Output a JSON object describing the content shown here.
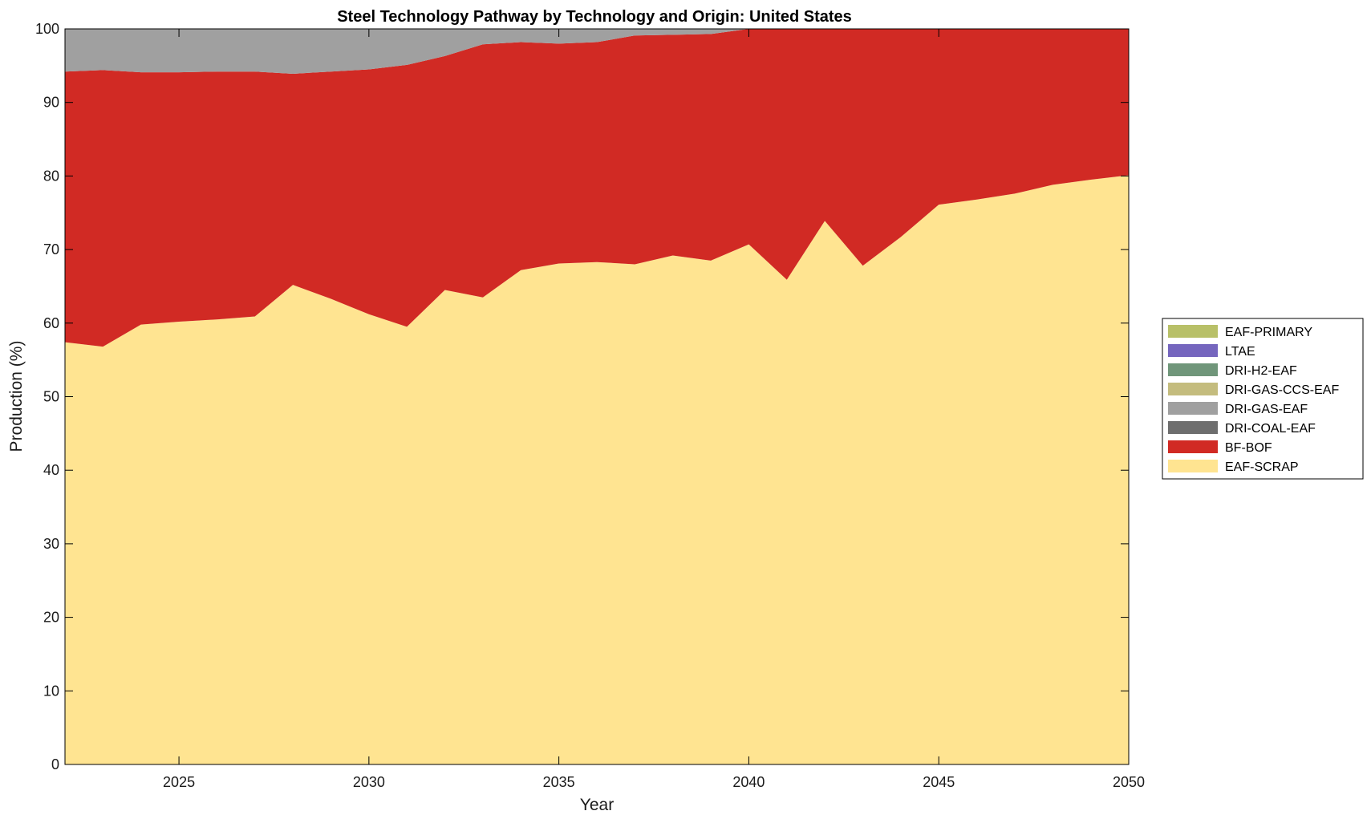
{
  "chart_data": {
    "type": "area",
    "stacked": true,
    "title": "Steel Technology Pathway by Technology and Origin: United States",
    "xlabel": "Year",
    "ylabel": "Production (%)",
    "xlim": [
      2022,
      2050
    ],
    "ylim": [
      0,
      100
    ],
    "xticks": [
      2025,
      2030,
      2035,
      2040,
      2045,
      2050
    ],
    "yticks": [
      0,
      10,
      20,
      30,
      40,
      50,
      60,
      70,
      80,
      90,
      100
    ],
    "grid": false,
    "legend_position": "right",
    "x": [
      2022,
      2023,
      2024,
      2025,
      2026,
      2027,
      2028,
      2029,
      2030,
      2031,
      2032,
      2033,
      2034,
      2035,
      2036,
      2037,
      2038,
      2039,
      2040,
      2041,
      2042,
      2043,
      2044,
      2045,
      2046,
      2047,
      2048,
      2049,
      2050
    ],
    "series": [
      {
        "name": "EAF-SCRAP",
        "color": "#FFE491",
        "values": [
          57.4,
          56.8,
          59.8,
          60.2,
          60.5,
          60.9,
          65.2,
          63.3,
          61.2,
          59.5,
          64.5,
          63.5,
          67.2,
          68.1,
          68.3,
          68.0,
          69.2,
          68.5,
          70.7,
          65.9,
          73.9,
          67.8,
          71.7,
          76.1,
          76.8,
          77.6,
          78.8,
          79.5,
          80.1
        ]
      },
      {
        "name": "BF-BOF",
        "color": "#D12A24",
        "values": [
          36.8,
          37.6,
          34.3,
          33.9,
          33.7,
          33.3,
          28.7,
          30.9,
          33.3,
          35.6,
          31.8,
          34.4,
          31.0,
          29.9,
          29.9,
          31.1,
          30.0,
          30.8,
          29.3,
          34.1,
          26.1,
          32.2,
          28.3,
          23.9,
          23.2,
          22.4,
          21.2,
          20.5,
          19.9
        ]
      },
      {
        "name": "DRI-COAL-EAF",
        "color": "#6E6E6E",
        "values": [
          0,
          0,
          0,
          0,
          0,
          0,
          0,
          0,
          0,
          0,
          0,
          0,
          0,
          0,
          0,
          0,
          0,
          0,
          0,
          0,
          0,
          0,
          0,
          0,
          0,
          0,
          0,
          0,
          0
        ]
      },
      {
        "name": "DRI-GAS-EAF",
        "color": "#A0A0A0",
        "values": [
          5.8,
          5.6,
          5.9,
          5.9,
          5.8,
          5.8,
          6.1,
          5.8,
          5.5,
          4.9,
          3.7,
          2.1,
          1.8,
          2.0,
          1.8,
          0.9,
          0.8,
          0.7,
          0,
          0,
          0,
          0,
          0,
          0,
          0,
          0,
          0,
          0,
          0
        ]
      },
      {
        "name": "DRI-GAS-CCS-EAF",
        "color": "#C4BC7E",
        "values": [
          0,
          0,
          0,
          0,
          0,
          0,
          0,
          0,
          0,
          0,
          0,
          0,
          0,
          0,
          0,
          0,
          0,
          0,
          0,
          0,
          0,
          0,
          0,
          0,
          0,
          0,
          0,
          0,
          0
        ]
      },
      {
        "name": "DRI-H2-EAF",
        "color": "#70967A",
        "values": [
          0,
          0,
          0,
          0,
          0,
          0,
          0,
          0,
          0,
          0,
          0,
          0,
          0,
          0,
          0,
          0,
          0,
          0,
          0,
          0,
          0,
          0,
          0,
          0,
          0,
          0,
          0,
          0,
          0
        ]
      },
      {
        "name": "LTAE",
        "color": "#7566BE",
        "values": [
          0,
          0,
          0,
          0,
          0,
          0,
          0,
          0,
          0,
          0,
          0,
          0,
          0,
          0,
          0,
          0,
          0,
          0,
          0,
          0,
          0,
          0,
          0,
          0,
          0,
          0,
          0,
          0,
          0
        ]
      },
      {
        "name": "EAF-PRIMARY",
        "color": "#B8C068",
        "values": [
          0,
          0,
          0,
          0,
          0,
          0,
          0,
          0,
          0,
          0,
          0,
          0,
          0,
          0,
          0,
          0,
          0,
          0,
          0,
          0,
          0,
          0,
          0,
          0,
          0,
          0,
          0,
          0,
          0
        ]
      }
    ],
    "legend_order": [
      "EAF-PRIMARY",
      "LTAE",
      "DRI-H2-EAF",
      "DRI-GAS-CCS-EAF",
      "DRI-GAS-EAF",
      "DRI-COAL-EAF",
      "BF-BOF",
      "EAF-SCRAP"
    ]
  }
}
